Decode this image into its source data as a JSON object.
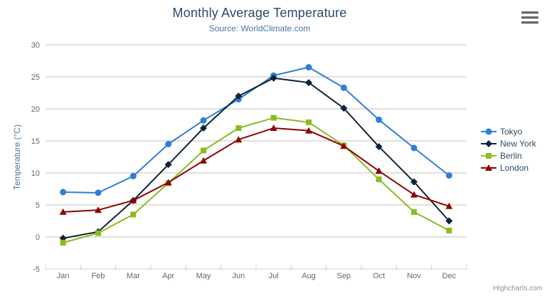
{
  "credit": "Highcharts.com",
  "export_button": {
    "icon": "hamburger-icon"
  },
  "colors": {
    "title": "#274b6d",
    "subtitle": "#4d759e",
    "axis_title": "#4d759e",
    "tick_label": "#666666",
    "gridline": "#c0c0c0",
    "axis_line": "#c0d0e0",
    "legend_text": "#274b6d",
    "credit_text": "#909090"
  },
  "chart_data": {
    "type": "line",
    "title": "Monthly Average Temperature",
    "subtitle": "Source: WorldClimate.com",
    "xlabel": "",
    "ylabel": "Temperature (°C)",
    "ylim": [
      -5,
      30
    ],
    "yticks": [
      -5,
      0,
      5,
      10,
      15,
      20,
      25,
      30
    ],
    "grid": true,
    "legend_position": "right",
    "categories": [
      "Jan",
      "Feb",
      "Mar",
      "Apr",
      "May",
      "Jun",
      "Jul",
      "Aug",
      "Sep",
      "Oct",
      "Nov",
      "Dec"
    ],
    "series": [
      {
        "name": "Tokyo",
        "color": "#2f7ed8",
        "marker": "circle",
        "values": [
          7.0,
          6.9,
          9.5,
          14.5,
          18.2,
          21.5,
          25.2,
          26.5,
          23.3,
          18.3,
          13.9,
          9.6
        ]
      },
      {
        "name": "New York",
        "color": "#0d233a",
        "marker": "diamond",
        "values": [
          -0.2,
          0.8,
          5.7,
          11.3,
          17.0,
          22.0,
          24.8,
          24.1,
          20.1,
          14.1,
          8.6,
          2.5
        ]
      },
      {
        "name": "Berlin",
        "color": "#8bbc21",
        "marker": "square",
        "values": [
          -0.9,
          0.6,
          3.5,
          8.4,
          13.5,
          17.0,
          18.6,
          17.9,
          14.3,
          9.0,
          3.9,
          1.0
        ]
      },
      {
        "name": "London",
        "color": "#910000",
        "marker": "triangle",
        "values": [
          3.9,
          4.2,
          5.7,
          8.5,
          11.9,
          15.2,
          17.0,
          16.6,
          14.2,
          10.3,
          6.6,
          4.8
        ]
      }
    ]
  }
}
